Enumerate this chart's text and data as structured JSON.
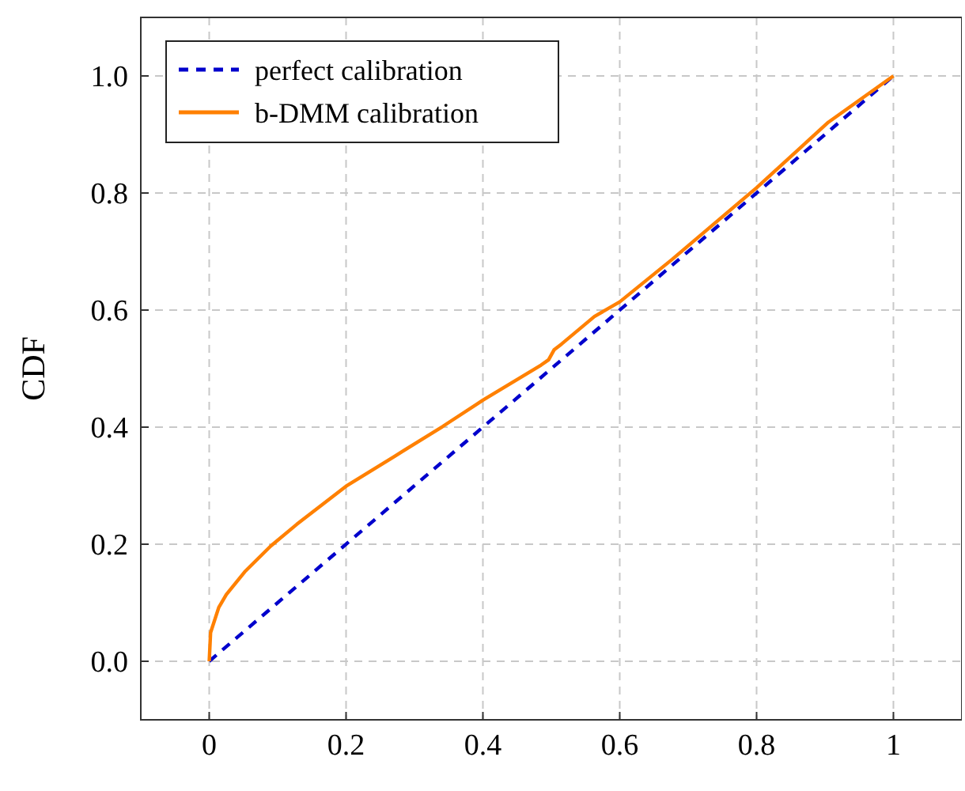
{
  "chart_data": {
    "type": "line",
    "ylabel": "CDF",
    "xlim": [
      -0.1,
      1.1
    ],
    "ylim": [
      -0.1,
      1.1
    ],
    "xticks": [
      0,
      0.2,
      0.4,
      0.6,
      0.8,
      1
    ],
    "yticks": [
      {
        "value": 0,
        "label": "0.0"
      },
      {
        "value": 0.2,
        "label": "0.2"
      },
      {
        "value": 0.4,
        "label": "0.4"
      },
      {
        "value": 0.6,
        "label": "0.6"
      },
      {
        "value": 0.8,
        "label": "0.8"
      },
      {
        "value": 1,
        "label": "1.0"
      }
    ],
    "grid": true,
    "legend": "top left",
    "series": [
      {
        "name": "perfect calibration",
        "color": "#0000cc",
        "line_style": "dashed",
        "x": [
          0,
          1
        ],
        "values": [
          0,
          1
        ]
      },
      {
        "name": "b-DMM calibration",
        "color": "#ff8000",
        "line_style": "solid",
        "x": [
          0,
          0.002,
          0.014,
          0.025,
          0.052,
          0.09,
          0.128,
          0.2,
          0.272,
          0.341,
          0.4,
          0.485,
          0.496,
          0.504,
          0.515,
          0.563,
          0.6,
          0.677,
          0.8,
          0.905,
          1
        ],
        "values": [
          0,
          0.049,
          0.092,
          0.114,
          0.153,
          0.197,
          0.234,
          0.299,
          0.351,
          0.401,
          0.446,
          0.506,
          0.515,
          0.532,
          0.542,
          0.589,
          0.614,
          0.687,
          0.809,
          0.921,
          1
        ]
      }
    ]
  }
}
